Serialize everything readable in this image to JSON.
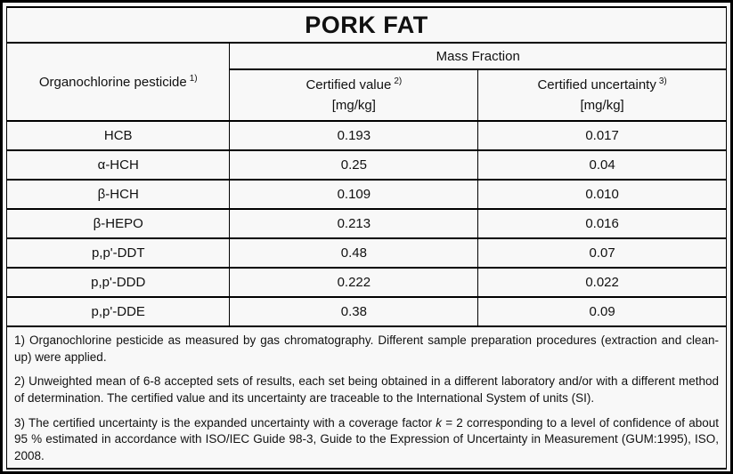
{
  "title": "PORK FAT",
  "table": {
    "col1_header": {
      "label": "Organochlorine pesticide",
      "sup": "1)"
    },
    "group_header": "Mass Fraction",
    "col2_header": {
      "label": "Certified value",
      "sup": "2)",
      "unit": "[mg/kg]"
    },
    "col3_header": {
      "label": "Certified uncertainty",
      "sup": "3)",
      "unit": "[mg/kg]"
    },
    "rows": [
      {
        "pesticide": "HCB",
        "value": "0.193",
        "uncertainty": "0.017"
      },
      {
        "pesticide": "α-HCH",
        "value": "0.25",
        "uncertainty": "0.04"
      },
      {
        "pesticide": "β-HCH",
        "value": "0.109",
        "uncertainty": "0.010"
      },
      {
        "pesticide": "β-HEPO",
        "value": "0.213",
        "uncertainty": "0.016"
      },
      {
        "pesticide": "p,p'-DDT",
        "value": "0.48",
        "uncertainty": "0.07"
      },
      {
        "pesticide": "p,p'-DDD",
        "value": "0.222",
        "uncertainty": "0.022"
      },
      {
        "pesticide": "p,p'-DDE",
        "value": "0.38",
        "uncertainty": "0.09"
      }
    ]
  },
  "footnotes": {
    "f1": "1) Organochlorine pesticide as measured by gas chromatography. Different sample preparation procedures (extraction and clean-up) were applied.",
    "f2": "2) Unweighted mean of 6-8 accepted sets of results, each set being obtained in a different laboratory and/or with a different method of determination. The certified value and its uncertainty are traceable to the International System of units (SI).",
    "f3_before": "3) The certified uncertainty is the expanded uncertainty with a coverage factor ",
    "f3_k": "k",
    "f3_after": " = 2 corresponding to a level of confidence of about 95 % estimated in accordance with ISO/IEC Guide 98-3, Guide to the Expression of Uncertainty in Measurement (GUM:1995), ISO, 2008."
  },
  "colors": {
    "border": "#000000",
    "background": "#f8f8f8",
    "text": "#111111"
  }
}
